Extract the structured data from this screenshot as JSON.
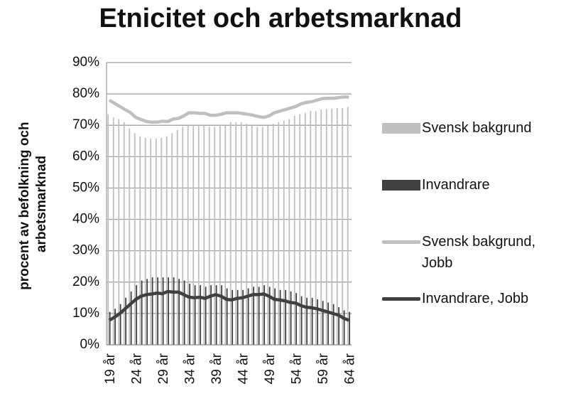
{
  "chart_data": {
    "type": "bar_line",
    "title": "Etnicitet och arbetsmarknad",
    "y_label": [
      "procent av befolkning och",
      "arbetsmarknad"
    ],
    "categories": [
      "19 år",
      null,
      null,
      null,
      null,
      "24 år",
      null,
      null,
      null,
      null,
      "29 år",
      null,
      null,
      null,
      null,
      "34 år",
      null,
      null,
      null,
      null,
      "39 år",
      null,
      null,
      null,
      null,
      "44 år",
      null,
      null,
      null,
      null,
      "49 år",
      null,
      null,
      null,
      null,
      "54 år",
      null,
      null,
      null,
      null,
      "59 år",
      null,
      null,
      null,
      null,
      "64 år"
    ],
    "ylim": [
      0,
      90
    ],
    "yticks": [
      {
        "value": 0,
        "label": "0%"
      },
      {
        "value": 10,
        "label": "10%"
      },
      {
        "value": 20,
        "label": "20%"
      },
      {
        "value": 30,
        "label": "30%"
      },
      {
        "value": 40,
        "label": "40%"
      },
      {
        "value": 50,
        "label": "50%"
      },
      {
        "value": 60,
        "label": "60%"
      },
      {
        "value": 70,
        "label": "70%"
      },
      {
        "value": 80,
        "label": "80%"
      },
      {
        "value": 90,
        "label": "90%"
      }
    ],
    "grid": true,
    "series": [
      {
        "name": "Svensk bakgrund",
        "type": "bar",
        "color": "#bfbfbf",
        "values": [
          73.5,
          72.5,
          72,
          71,
          69,
          67.5,
          66.5,
          66,
          65.8,
          65.8,
          66,
          66.5,
          67.5,
          68.5,
          69.5,
          70,
          70,
          70,
          70,
          69.5,
          69.5,
          70,
          70,
          71,
          71,
          71,
          70.5,
          70,
          69.5,
          69.5,
          70,
          70.5,
          71,
          71.5,
          72,
          73,
          73.5,
          74,
          74.5,
          74.5,
          75,
          75.2,
          75.3,
          75.5,
          75.5,
          75.8
        ]
      },
      {
        "name": "Invandrare",
        "type": "bar",
        "color": "#404040",
        "values": [
          10.5,
          11.5,
          13,
          15,
          17,
          19,
          20.5,
          21,
          21.5,
          21.5,
          21.5,
          21.5,
          21.5,
          21,
          20.5,
          19.5,
          19,
          19,
          18.5,
          19,
          19,
          19,
          18,
          17.5,
          17.5,
          17.5,
          18,
          18.5,
          18.5,
          19,
          18.5,
          18,
          17.5,
          17.5,
          17,
          16.5,
          15.5,
          15,
          15,
          14.5,
          14,
          13.5,
          13,
          12,
          11,
          10.5
        ]
      },
      {
        "name": "Svensk bakgrund, Jobb",
        "type": "line",
        "color": "#bfbfbf",
        "values": [
          78,
          77,
          76,
          75,
          74,
          72.5,
          71.8,
          71.2,
          71,
          71,
          71.3,
          71.2,
          72,
          72.2,
          73,
          74,
          74,
          73.8,
          73.8,
          73.2,
          73.2,
          73.5,
          74,
          74,
          74,
          73.8,
          73.5,
          73.2,
          72.8,
          72.5,
          73,
          74,
          74.5,
          75,
          75.5,
          76,
          76.8,
          77.3,
          77.5,
          78,
          78.5,
          78.6,
          78.6,
          78.8,
          79,
          79
        ]
      },
      {
        "name": "Invandrare, Jobb",
        "type": "line",
        "color": "#404040",
        "values": [
          7.8,
          8.8,
          10,
          11.5,
          13,
          14.5,
          15.5,
          16,
          16.2,
          16.5,
          16.3,
          17,
          16.8,
          16.8,
          16,
          15.2,
          15,
          15.2,
          14.8,
          15.5,
          16,
          15.5,
          14.5,
          14.3,
          14.8,
          15,
          15.5,
          16,
          16,
          16.2,
          15.5,
          14.5,
          14.3,
          14,
          13.5,
          13.3,
          12.5,
          12,
          11.8,
          11.5,
          11,
          10.5,
          10,
          9.5,
          8.5,
          7.8
        ]
      }
    ]
  }
}
